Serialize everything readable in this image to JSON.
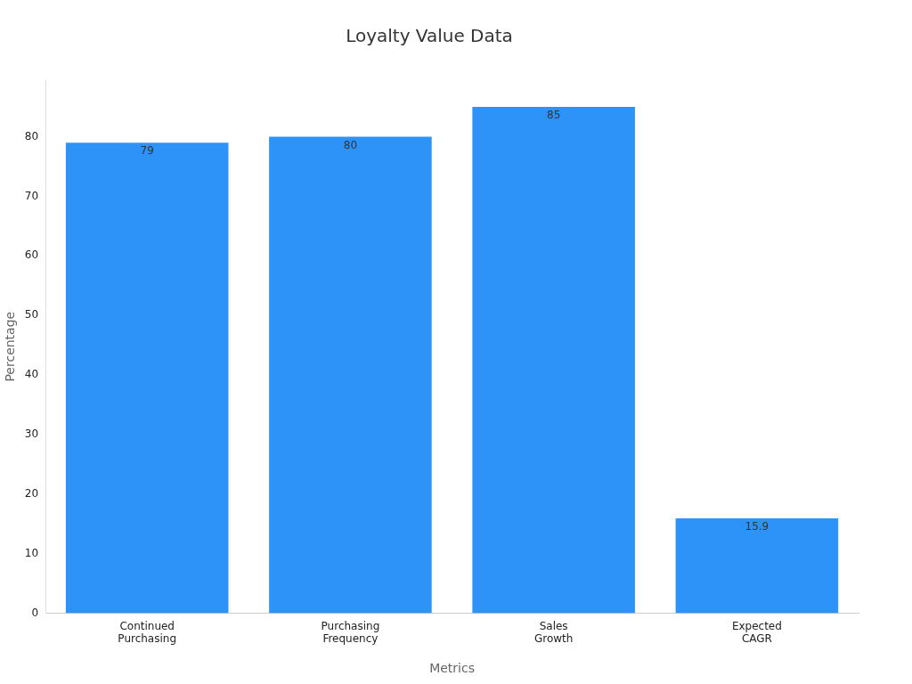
{
  "chart_data": {
    "type": "bar",
    "title": "Loyalty Value Data",
    "xlabel": "Metrics",
    "ylabel": "Percentage",
    "categories": [
      "Continued Purchasing",
      "Purchasing Frequency",
      "Sales Growth",
      "Expected CAGR"
    ],
    "values": [
      79,
      80,
      85,
      15.9
    ],
    "color": "#2e93f9",
    "ylim": [
      0,
      89.5
    ],
    "yticks": [
      0,
      10,
      20,
      30,
      40,
      50,
      60,
      70,
      80
    ],
    "grid": false,
    "legend": false,
    "data_labels": true
  }
}
